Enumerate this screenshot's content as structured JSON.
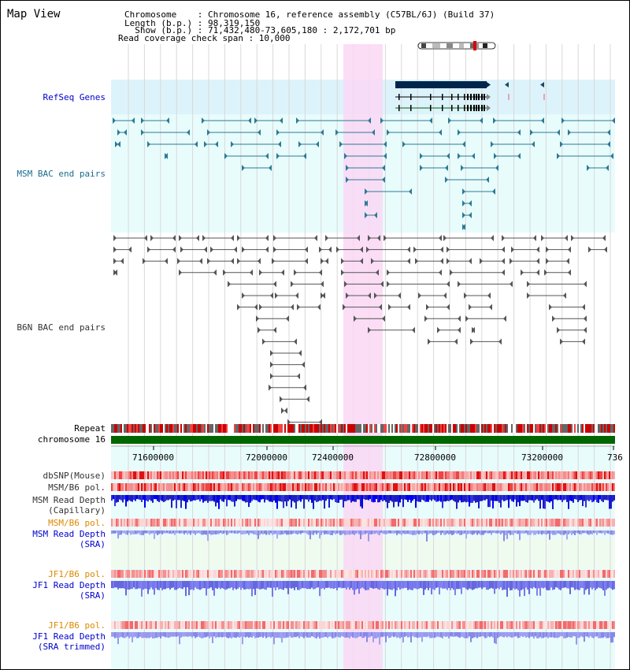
{
  "header": {
    "title": "Map View",
    "info_lines": [
      "Chromosome    : Chromosome 16, reference assembly (C57BL/6J) (Build 37)",
      "Length (b.p.) : 98,319,150",
      "  Show (b.p.) : 71,432,480-73,605,180 : 2,172,701 bp",
      "Read coverage check span : 10,000"
    ]
  },
  "colors": {
    "refseq_bg": "#ddf3fb",
    "track_bg": "#e8fcfc",
    "green_bg": "#f0fbf0",
    "highlight": "#fad7f4",
    "label_blue": "#0000cc",
    "label_teal": "#1a6b8a",
    "label_gray": "#333333",
    "label_orange": "#dd8800",
    "chromosome_green": "#006600"
  },
  "tracks": {
    "refseq": "RefSeq Genes",
    "msm_bac": "MSM BAC end pairs",
    "b6n_bac": "B6N BAC end pairs",
    "repeat": "Repeat",
    "chromosome": "chromosome 16",
    "dbsnp": "dbSNP(Mouse)",
    "msm_b6_pol_1": "MSM/B6 pol.",
    "msm_read_depth_cap_1": "MSM Read Depth",
    "msm_read_depth_cap_2": "(Capillary)",
    "msm_b6_pol_2": "MSM/B6 pol.",
    "msm_read_depth_sra_1": "MSM Read Depth",
    "msm_read_depth_sra_2": "(SRA)",
    "jf1_b6_pol_1": "JF1/B6 pol.",
    "jf1_read_depth_1": "JF1 Read Depth",
    "jf1_read_depth_2": "(SRA)",
    "jf1_b6_pol_2": "JF1/B6 pol.",
    "jf1_read_depth_trim_1": "JF1 Read Depth",
    "jf1_read_depth_trim_2": "(SRA trimmed)"
  },
  "ruler": {
    "ticks": [
      "71600000",
      "72000000",
      "72400000",
      "72800000",
      "73200000",
      "736"
    ]
  }
}
